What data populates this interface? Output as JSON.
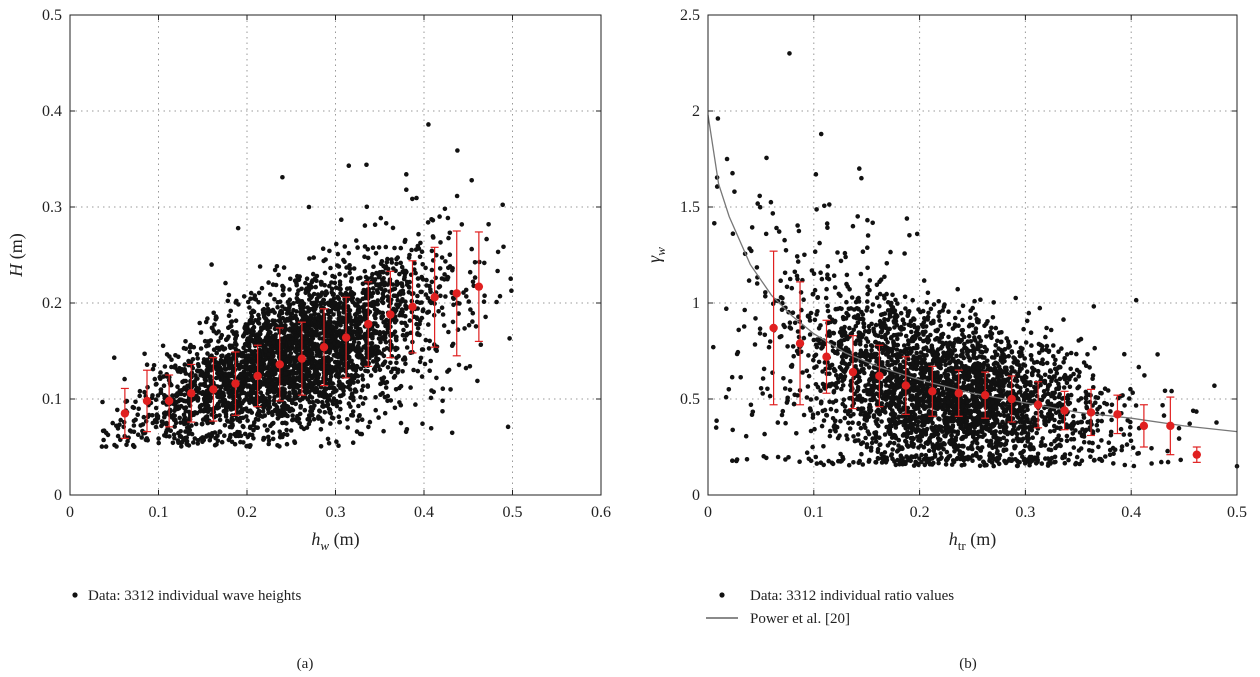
{
  "chart_data": [
    {
      "panel": "(a)",
      "type": "scatter",
      "xlabel": {
        "main": "h",
        "sub": "w",
        "unit": "(m)"
      },
      "ylabel": {
        "main": "H",
        "unit": "(m)"
      },
      "xlim": [
        0,
        0.6
      ],
      "ylim": [
        0,
        0.5
      ],
      "xticks": [
        "0",
        "0.1",
        "0.2",
        "0.3",
        "0.4",
        "0.5",
        "0.6"
      ],
      "yticks": [
        "0",
        "0.1",
        "0.2",
        "0.3",
        "0.4",
        "0.5"
      ],
      "grid": true,
      "legend_position": "below",
      "scatter_legend": "Data: 3312 individual wave heights",
      "scatter_point_count": 3312,
      "scatter_colors": {
        "points": "#111111",
        "means": "#e02020"
      },
      "outliers": [
        [
          0.405,
          0.386
        ],
        [
          0.335,
          0.344
        ],
        [
          0.315,
          0.343
        ],
        [
          0.24,
          0.331
        ],
        [
          0.38,
          0.334
        ],
        [
          0.19,
          0.278
        ],
        [
          0.495,
          0.071
        ],
        [
          0.43,
          0.11
        ],
        [
          0.05,
          0.143
        ],
        [
          0.16,
          0.24
        ],
        [
          0.38,
          0.318
        ],
        [
          0.27,
          0.3
        ]
      ],
      "binned_means": {
        "x": [
          0.062,
          0.087,
          0.112,
          0.137,
          0.162,
          0.187,
          0.212,
          0.237,
          0.262,
          0.287,
          0.312,
          0.337,
          0.362,
          0.387,
          0.412,
          0.437,
          0.462
        ],
        "y": [
          0.085,
          0.098,
          0.098,
          0.106,
          0.11,
          0.116,
          0.124,
          0.136,
          0.142,
          0.154,
          0.164,
          0.178,
          0.188,
          0.196,
          0.206,
          0.21,
          0.217
        ],
        "err": [
          0.026,
          0.032,
          0.027,
          0.03,
          0.033,
          0.033,
          0.032,
          0.038,
          0.038,
          0.04,
          0.042,
          0.044,
          0.045,
          0.048,
          0.052,
          0.065,
          0.057
        ]
      }
    },
    {
      "panel": "(b)",
      "type": "scatter",
      "xlabel": {
        "main": "h",
        "sub": "tr",
        "unit": "(m)"
      },
      "ylabel": {
        "main": "γ",
        "sub": "w"
      },
      "xlim": [
        0,
        0.5
      ],
      "ylim": [
        0,
        2.5
      ],
      "xticks": [
        "0",
        "0.1",
        "0.2",
        "0.3",
        "0.4",
        "0.5"
      ],
      "yticks": [
        "0",
        "0.5",
        "1",
        "1.5",
        "2",
        "2.5"
      ],
      "grid": true,
      "legend_position": "below",
      "scatter_legend": "Data: 3312 individual ratio values",
      "line_legend": "Power et al. [20]",
      "scatter_point_count": 3312,
      "scatter_colors": {
        "points": "#111111",
        "means": "#e02020",
        "line": "#777777"
      },
      "outliers": [
        [
          0.077,
          2.3
        ],
        [
          0.107,
          1.88
        ],
        [
          0.102,
          1.67
        ],
        [
          0.143,
          1.7
        ],
        [
          0.145,
          1.65
        ],
        [
          0.188,
          1.44
        ],
        [
          0.018,
          1.75
        ],
        [
          0.025,
          1.58
        ],
        [
          0.005,
          0.77
        ],
        [
          0.055,
          1.36
        ],
        [
          0.5,
          0.15
        ],
        [
          0.137,
          1.4
        ]
      ],
      "binned_means": {
        "x": [
          0.062,
          0.087,
          0.112,
          0.137,
          0.162,
          0.187,
          0.212,
          0.237,
          0.262,
          0.287,
          0.312,
          0.337,
          0.362,
          0.387,
          0.412,
          0.437,
          0.462
        ],
        "y": [
          0.87,
          0.79,
          0.72,
          0.64,
          0.62,
          0.57,
          0.54,
          0.53,
          0.52,
          0.5,
          0.47,
          0.44,
          0.43,
          0.42,
          0.36,
          0.36,
          0.21
        ],
        "err": [
          0.4,
          0.32,
          0.19,
          0.19,
          0.16,
          0.15,
          0.13,
          0.12,
          0.12,
          0.12,
          0.12,
          0.1,
          0.12,
          0.1,
          0.11,
          0.15,
          0.04
        ]
      },
      "fit_curve": {
        "x": [
          0.0,
          0.01,
          0.02,
          0.04,
          0.06,
          0.08,
          0.1,
          0.13,
          0.16,
          0.2,
          0.25,
          0.3,
          0.35,
          0.4,
          0.45,
          0.5
        ],
        "y": [
          1.98,
          1.62,
          1.45,
          1.2,
          1.04,
          0.93,
          0.84,
          0.74,
          0.67,
          0.6,
          0.53,
          0.48,
          0.43,
          0.4,
          0.36,
          0.33
        ]
      }
    }
  ]
}
